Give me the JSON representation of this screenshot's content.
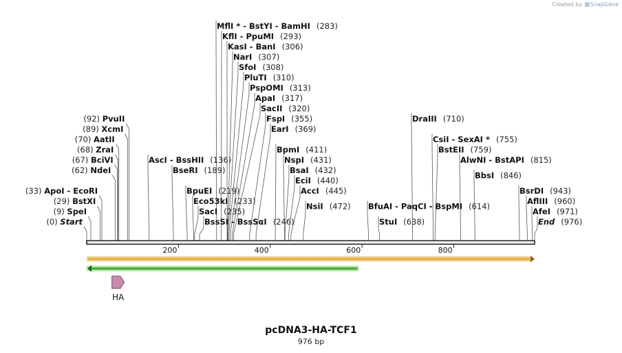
{
  "credit": {
    "prefix": "Created by",
    "brand": "SnapGene"
  },
  "plasmid": {
    "name": "pcDNA3-HA-TCF1",
    "length_label": "976 bp",
    "length": 976
  },
  "axis": {
    "ticks": [
      200,
      400,
      600,
      800
    ]
  },
  "enzymes": [
    {
      "name": "Start",
      "pos": 0,
      "pos_label": "(0)",
      "italic": true,
      "side": "left",
      "row": 0
    },
    {
      "name": "SpeI",
      "pos": 9,
      "pos_label": "(9)",
      "side": "left",
      "row": 1
    },
    {
      "name": "BstXI",
      "pos": 29,
      "pos_label": "(29)",
      "side": "left",
      "row": 2
    },
    {
      "name": "ApoI  -  EcoRI",
      "pos": 33,
      "pos_label": "(33)",
      "side": "left",
      "row": 3
    },
    {
      "name": "NdeI",
      "pos": 62,
      "pos_label": "(62)",
      "side": "left",
      "row": 5
    },
    {
      "name": "BciVI",
      "pos": 67,
      "pos_label": "(67)",
      "side": "left",
      "row": 6
    },
    {
      "name": "ZraI",
      "pos": 68,
      "pos_label": "(68)",
      "side": "left",
      "row": 7
    },
    {
      "name": "AatII",
      "pos": 70,
      "pos_label": "(70)",
      "side": "left",
      "row": 8
    },
    {
      "name": "XcmI",
      "pos": 89,
      "pos_label": "(89)",
      "side": "left",
      "row": 9
    },
    {
      "name": "PvuII",
      "pos": 92,
      "pos_label": "(92)",
      "side": "left",
      "row": 10
    },
    {
      "name": "AscI  -  BssHII",
      "pos": 136,
      "pos_label": "(136)",
      "side": "right",
      "row": 6
    },
    {
      "name": "BseRI",
      "pos": 189,
      "pos_label": "(189)",
      "side": "right",
      "row": 5
    },
    {
      "name": "BpuEI",
      "pos": 219,
      "pos_label": "(219)",
      "side": "right",
      "row": 3
    },
    {
      "name": "Eco53kI",
      "pos": 233,
      "pos_label": "(233)",
      "side": "right",
      "row": 2
    },
    {
      "name": "SacI",
      "pos": 235,
      "pos_label": "(235)",
      "side": "right",
      "row": 1
    },
    {
      "name": "BssSI  -  BssSαI",
      "pos": 246,
      "pos_label": "(246)",
      "side": "right",
      "row": 0
    },
    {
      "name": "MflI *  -  BstYI  -  BamHI",
      "pos": 283,
      "pos_label": "(283)",
      "side": "right",
      "row": 19
    },
    {
      "name": "KflI  -  PpuMI",
      "pos": 293,
      "pos_label": "(293)",
      "side": "right",
      "row": 18
    },
    {
      "name": "KasI  -  BanI",
      "pos": 306,
      "pos_label": "(306)",
      "side": "right",
      "row": 17
    },
    {
      "name": "NarI",
      "pos": 307,
      "pos_label": "(307)",
      "side": "right",
      "row": 16
    },
    {
      "name": "SfoI",
      "pos": 308,
      "pos_label": "(308)",
      "side": "right",
      "row": 15
    },
    {
      "name": "PluTI",
      "pos": 310,
      "pos_label": "(310)",
      "side": "right",
      "row": 14
    },
    {
      "name": "PspOMI",
      "pos": 313,
      "pos_label": "(313)",
      "side": "right",
      "row": 13
    },
    {
      "name": "ApaI",
      "pos": 317,
      "pos_label": "(317)",
      "side": "right",
      "row": 12
    },
    {
      "name": "SacII",
      "pos": 320,
      "pos_label": "(320)",
      "side": "right",
      "row": 11
    },
    {
      "name": "FspI",
      "pos": 355,
      "pos_label": "(355)",
      "side": "right",
      "row": 10
    },
    {
      "name": "EarI",
      "pos": 369,
      "pos_label": "(369)",
      "side": "right",
      "row": 9
    },
    {
      "name": "BpmI",
      "pos": 411,
      "pos_label": "(411)",
      "side": "right",
      "row": 7
    },
    {
      "name": "NspI",
      "pos": 431,
      "pos_label": "(431)",
      "side": "right",
      "row": 6
    },
    {
      "name": "BsaI",
      "pos": 432,
      "pos_label": "(432)",
      "side": "right",
      "row": 5
    },
    {
      "name": "EciI",
      "pos": 440,
      "pos_label": "(440)",
      "side": "right",
      "row": 4
    },
    {
      "name": "AccI",
      "pos": 445,
      "pos_label": "(445)",
      "side": "right",
      "row": 3
    },
    {
      "name": "NsiI",
      "pos": 472,
      "pos_label": "(472)",
      "side": "right",
      "row": 1.5
    },
    {
      "name": "BfuAI  -  PaqCI  -  BspMI",
      "pos": 614,
      "pos_label": "(614)",
      "side": "right",
      "row": 1.5,
      "anchor_pos": 614,
      "text_x": 535
    },
    {
      "name": "StuI",
      "pos": 638,
      "pos_label": "(638)",
      "side": "right",
      "row": 0
    },
    {
      "name": "DraIII",
      "pos": 710,
      "pos_label": "(710)",
      "side": "right",
      "row": 10
    },
    {
      "name": "CsiI  -  SexAI *",
      "pos": 755,
      "pos_label": "(755)",
      "side": "right",
      "row": 8
    },
    {
      "name": "BstEII",
      "pos": 759,
      "pos_label": "(759)",
      "side": "right",
      "row": 7
    },
    {
      "name": "AlwNI  -  BstAPI",
      "pos": 815,
      "pos_label": "(815)",
      "side": "right",
      "row": 6
    },
    {
      "name": "BbsI",
      "pos": 846,
      "pos_label": "(846)",
      "side": "right",
      "row": 4.5
    },
    {
      "name": "BsrDI",
      "pos": 943,
      "pos_label": "(943)",
      "side": "right",
      "row": 3
    },
    {
      "name": "AflIII",
      "pos": 960,
      "pos_label": "(960)",
      "side": "right",
      "row": 2
    },
    {
      "name": "AfeI",
      "pos": 971,
      "pos_label": "(971)",
      "side": "right",
      "row": 1
    },
    {
      "name": "End",
      "pos": 976,
      "pos_label": "(976)",
      "italic": true,
      "side": "right",
      "row": 0
    }
  ],
  "features": [
    {
      "kind": "orange-arrow",
      "start": 0,
      "end": 976,
      "direction": "forward",
      "color": "#f5a623",
      "border": "#e6d9a0"
    },
    {
      "kind": "green-arrow",
      "start": 0,
      "end": 593,
      "direction": "reverse",
      "color": "#3aa83a",
      "border": "#b8e6a0"
    },
    {
      "kind": "tag",
      "label": "HA",
      "start": 55,
      "end": 82,
      "direction": "forward",
      "color": "#c98bb0"
    }
  ],
  "colors": {
    "backbone": "#222222",
    "line": "#555555",
    "text": "#111111",
    "pos_text": "#222222"
  }
}
